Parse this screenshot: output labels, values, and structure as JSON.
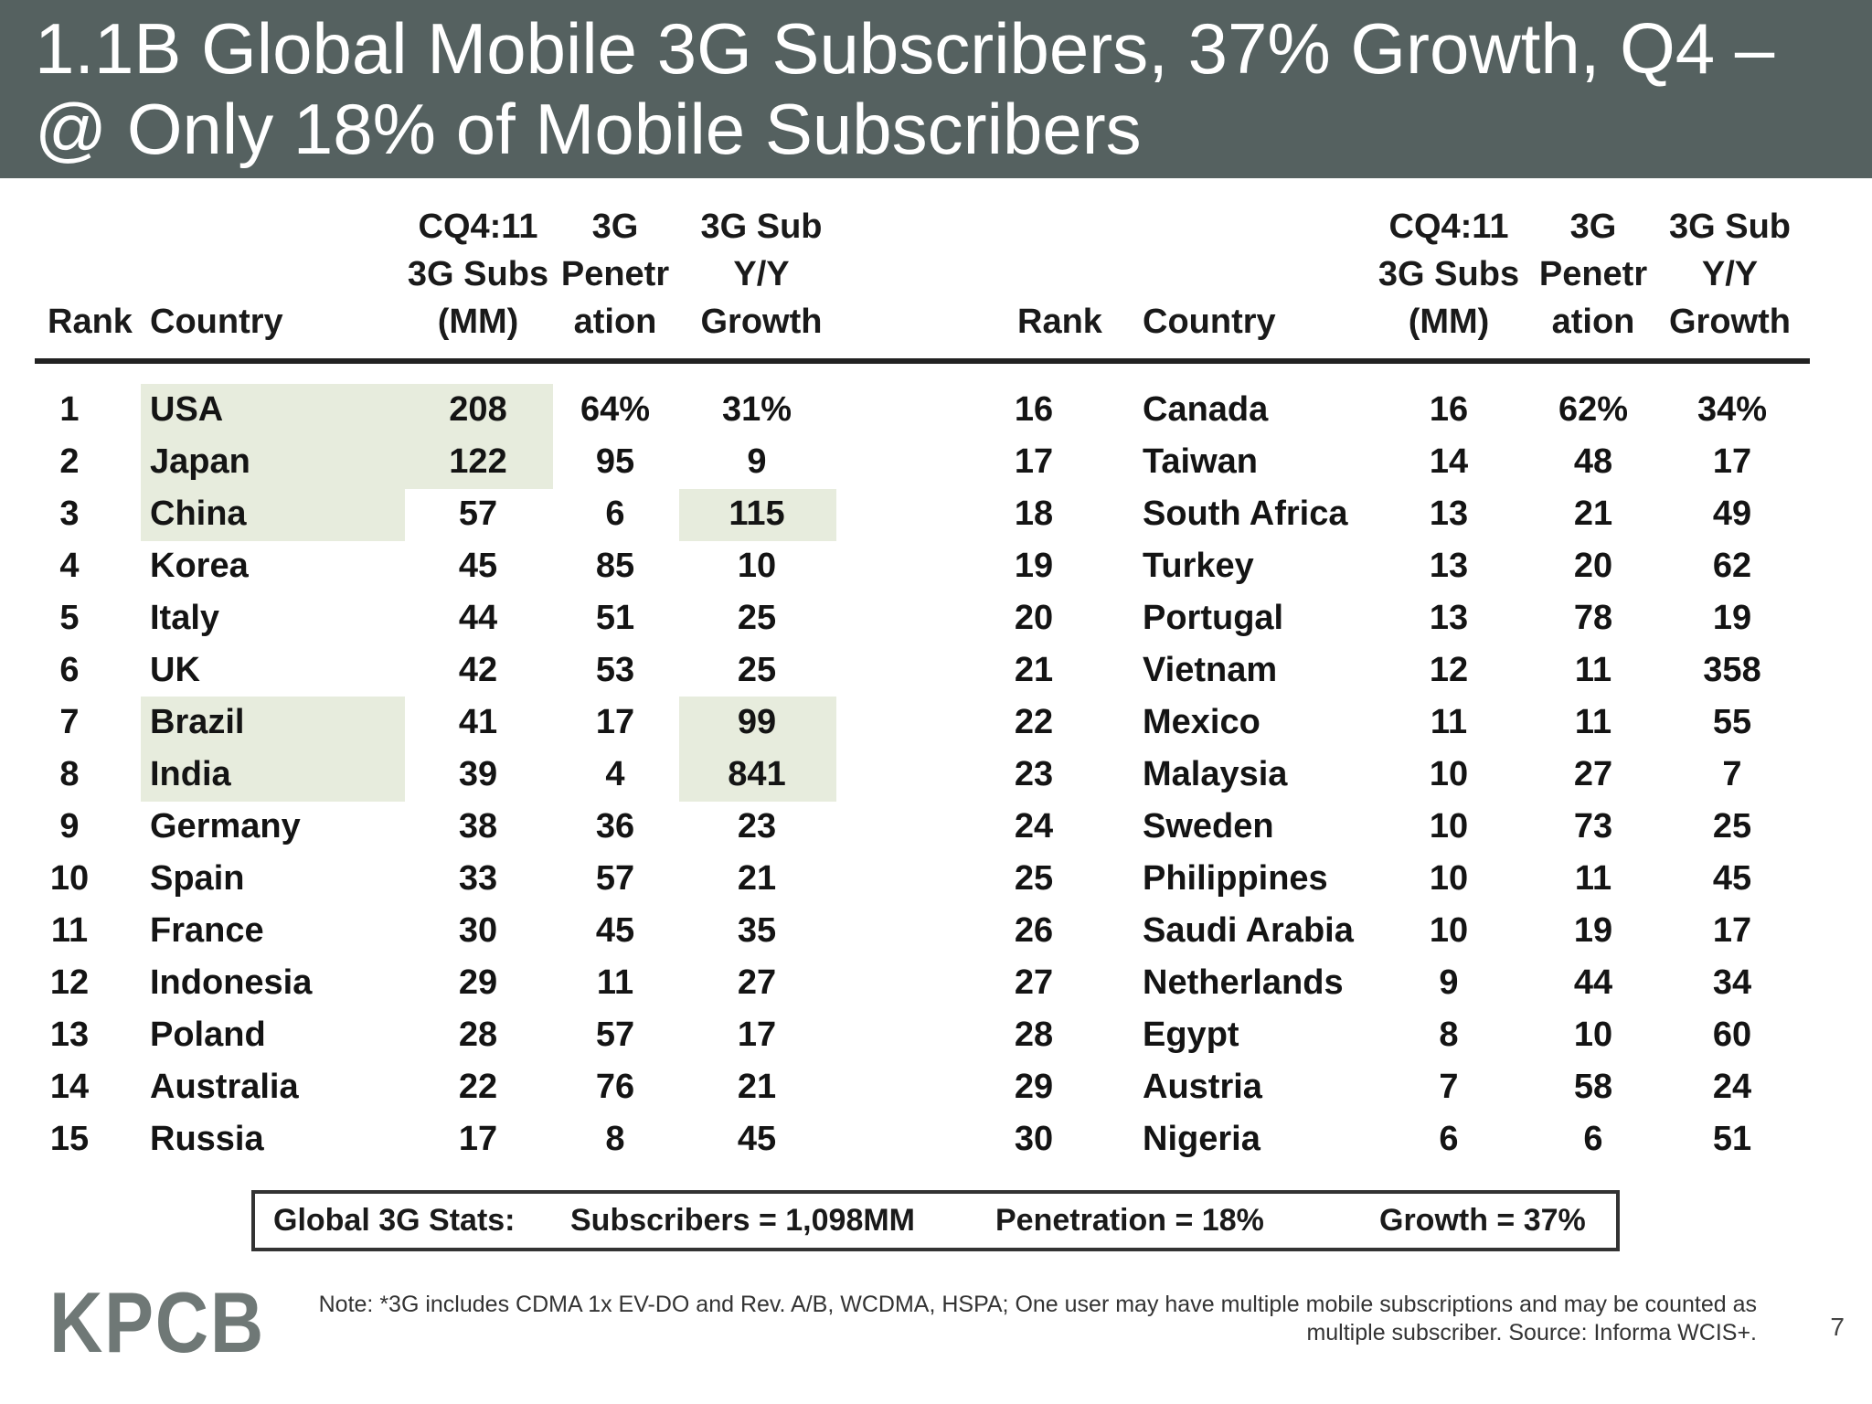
{
  "title": {
    "line1": "1.1B Global Mobile 3G Subscribers, 37% Growth, Q4 –",
    "line2": "@ Only 18% of Mobile Subscribers"
  },
  "headers": {
    "rank": "Rank",
    "country": "Country",
    "subs": [
      "CQ4:11",
      "3G Subs",
      "(MM)"
    ],
    "penetration": [
      "3G",
      "Penetr",
      "ation"
    ],
    "growth": [
      "3G Sub",
      "Y/Y",
      "Growth"
    ]
  },
  "left_rows": [
    {
      "rank": "1",
      "country": "USA",
      "subs": "208",
      "pen": "64%",
      "growth": "31%"
    },
    {
      "rank": "2",
      "country": "Japan",
      "subs": "122",
      "pen": "95",
      "growth": "9"
    },
    {
      "rank": "3",
      "country": "China",
      "subs": "57",
      "pen": "6",
      "growth": "115"
    },
    {
      "rank": "4",
      "country": "Korea",
      "subs": "45",
      "pen": "85",
      "growth": "10"
    },
    {
      "rank": "5",
      "country": "Italy",
      "subs": "44",
      "pen": "51",
      "growth": "25"
    },
    {
      "rank": "6",
      "country": "UK",
      "subs": "42",
      "pen": "53",
      "growth": "25"
    },
    {
      "rank": "7",
      "country": "Brazil",
      "subs": "41",
      "pen": "17",
      "growth": "99"
    },
    {
      "rank": "8",
      "country": "India",
      "subs": "39",
      "pen": "4",
      "growth": "841"
    },
    {
      "rank": "9",
      "country": "Germany",
      "subs": "38",
      "pen": "36",
      "growth": "23"
    },
    {
      "rank": "10",
      "country": "Spain",
      "subs": "33",
      "pen": "57",
      "growth": "21"
    },
    {
      "rank": "11",
      "country": "France",
      "subs": "30",
      "pen": "45",
      "growth": "35"
    },
    {
      "rank": "12",
      "country": "Indonesia",
      "subs": "29",
      "pen": "11",
      "growth": "27"
    },
    {
      "rank": "13",
      "country": "Poland",
      "subs": "28",
      "pen": "57",
      "growth": "17"
    },
    {
      "rank": "14",
      "country": "Australia",
      "subs": "22",
      "pen": "76",
      "growth": "21"
    },
    {
      "rank": "15",
      "country": "Russia",
      "subs": "17",
      "pen": "8",
      "growth": "45"
    }
  ],
  "right_rows": [
    {
      "rank": "16",
      "country": "Canada",
      "subs": "16",
      "pen": "62%",
      "growth": "34%"
    },
    {
      "rank": "17",
      "country": "Taiwan",
      "subs": "14",
      "pen": "48",
      "growth": "17"
    },
    {
      "rank": "18",
      "country": "South Africa",
      "subs": "13",
      "pen": "21",
      "growth": "49"
    },
    {
      "rank": "19",
      "country": "Turkey",
      "subs": "13",
      "pen": "20",
      "growth": "62"
    },
    {
      "rank": "20",
      "country": "Portugal",
      "subs": "13",
      "pen": "78",
      "growth": "19"
    },
    {
      "rank": "21",
      "country": "Vietnam",
      "subs": "12",
      "pen": "11",
      "growth": "358"
    },
    {
      "rank": "22",
      "country": "Mexico",
      "subs": "11",
      "pen": "11",
      "growth": "55"
    },
    {
      "rank": "23",
      "country": "Malaysia",
      "subs": "10",
      "pen": "27",
      "growth": "7"
    },
    {
      "rank": "24",
      "country": "Sweden",
      "subs": "10",
      "pen": "73",
      "growth": "25"
    },
    {
      "rank": "25",
      "country": "Philippines",
      "subs": "10",
      "pen": "11",
      "growth": "45"
    },
    {
      "rank": "26",
      "country": "Saudi Arabia",
      "subs": "10",
      "pen": "19",
      "growth": "17"
    },
    {
      "rank": "27",
      "country": "Netherlands",
      "subs": "9",
      "pen": "44",
      "growth": "34"
    },
    {
      "rank": "28",
      "country": "Egypt",
      "subs": "8",
      "pen": "10",
      "growth": "60"
    },
    {
      "rank": "29",
      "country": "Austria",
      "subs": "7",
      "pen": "58",
      "growth": "24"
    },
    {
      "rank": "30",
      "country": "Nigeria",
      "subs": "6",
      "pen": "6",
      "growth": "51"
    }
  ],
  "global_stats": {
    "label": "Global 3G Stats:",
    "subscribers": "Subscribers = 1,098MM",
    "penetration": "Penetration = 18%",
    "growth": "Growth = 37%"
  },
  "footer": {
    "logo": "KPCB",
    "note_line1": "Note: *3G includes CDMA 1x EV-DO and Rev. A/B, WCDMA, HSPA; One user may have multiple mobile subscriptions and may be counted as",
    "note_line2": "multiple subscriber.  Source: Informa WCIS+.",
    "page_number": "7"
  },
  "colors": {
    "title_bar": "#556160",
    "highlight": "#e7ecdd",
    "logo": "#6f7876"
  }
}
